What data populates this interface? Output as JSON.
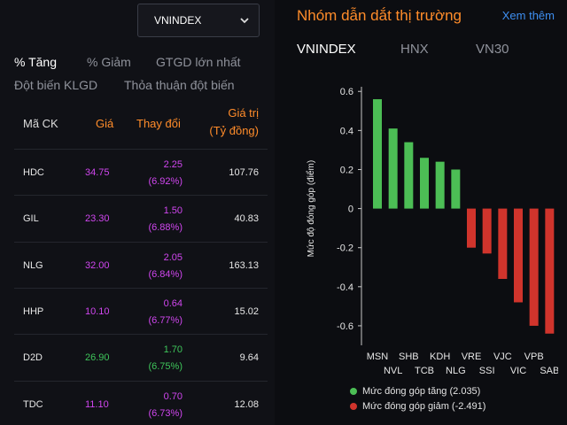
{
  "index_select": {
    "value": "VNINDEX"
  },
  "filters": [
    "% Tăng",
    "% Giảm",
    "GTGD lớn nhất",
    "Đột biến KLGD",
    "Thỏa thuận đột biến"
  ],
  "table": {
    "headers": {
      "code": "Mã CK",
      "price": "Giá",
      "change": "Thay đổi",
      "value_line1": "Giá trị",
      "value_line2": "(Tỷ đồng)"
    },
    "rows": [
      {
        "code": "HDC",
        "price": "34.75",
        "change": "2.25",
        "pct": "(6.92%)",
        "value": "107.76",
        "color": "#d046ef"
      },
      {
        "code": "GIL",
        "price": "23.30",
        "change": "1.50",
        "pct": "(6.88%)",
        "value": "40.83",
        "color": "#d046ef"
      },
      {
        "code": "NLG",
        "price": "32.00",
        "change": "2.05",
        "pct": "(6.84%)",
        "value": "163.13",
        "color": "#d046ef"
      },
      {
        "code": "HHP",
        "price": "10.10",
        "change": "0.64",
        "pct": "(6.77%)",
        "value": "15.02",
        "color": "#d046ef"
      },
      {
        "code": "D2D",
        "price": "26.90",
        "change": "1.70",
        "pct": "(6.75%)",
        "value": "9.64",
        "color": "#3ec55a"
      },
      {
        "code": "TDC",
        "price": "11.10",
        "change": "0.70",
        "pct": "(6.73%)",
        "value": "12.08",
        "color": "#d046ef"
      }
    ]
  },
  "right": {
    "title": "Nhóm dẫn dắt thị trường",
    "more": "Xem thêm",
    "tabs": [
      "VNINDEX",
      "HNX",
      "VN30"
    ]
  },
  "chart_data": {
    "type": "bar",
    "ylabel": "Mức độ đóng góp (điểm)",
    "ylim": [
      -0.7,
      0.66
    ],
    "yticks": [
      0.6,
      0.4,
      0.2,
      0,
      -0.2,
      -0.4,
      -0.6
    ],
    "categories": [
      "MSN",
      "NVL",
      "SHB",
      "TCB",
      "KDH",
      "NLG",
      "VRE",
      "SSI",
      "VJC",
      "VIC",
      "VPB",
      "SAB"
    ],
    "values": [
      0.56,
      0.41,
      0.34,
      0.26,
      0.24,
      0.2,
      -0.2,
      -0.23,
      -0.36,
      -0.48,
      -0.6,
      -0.64
    ],
    "colors": {
      "positive": "#4cbe55",
      "negative": "#d0342c"
    },
    "legend": [
      {
        "label": "Mức đóng góp tăng (2.035)",
        "color": "#4cbe55"
      },
      {
        "label": "Mức đóng góp giảm (-2.491)",
        "color": "#d0342c"
      }
    ]
  }
}
